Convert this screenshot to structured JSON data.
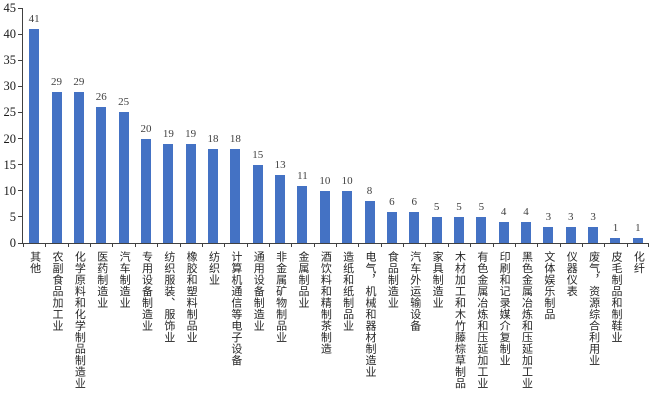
{
  "chart_data": {
    "type": "bar",
    "title": "",
    "xlabel": "",
    "ylabel": "",
    "categories": [
      "其他",
      "农副食品加工业",
      "化学原料和化学制品制造业",
      "医药制造业",
      "汽车制造业",
      "专用设备制造业",
      "纺织服装、服饰业",
      "橡胶和塑料制品业",
      "纺织业",
      "计算机通信等电子设备",
      "通用设备制造业",
      "非金属矿物制品业",
      "金属制品业",
      "酒饮料和精制茶制造",
      "造纸和纸制品业",
      "电气，机械和器材制造业",
      "食品制造业",
      "汽车外运输设备",
      "家具制造业",
      "木材加工和木竹藤棕草制品",
      "有色金属冶炼和压延加工业",
      "印刷和记录媒介复制业",
      "黑色金属冶炼和压延加工业",
      "文体娱乐制品",
      "仪器仪表",
      "废气，资源综合利用业",
      "皮毛制品和制鞋业",
      "化纤"
    ],
    "values": [
      41,
      29,
      29,
      26,
      25,
      20,
      19,
      19,
      18,
      18,
      15,
      13,
      11,
      10,
      10,
      8,
      6,
      6,
      5,
      5,
      5,
      4,
      4,
      3,
      3,
      3,
      1,
      1
    ],
    "value_labels_shown": true,
    "ylim": [
      0,
      45
    ],
    "yticks": [
      0,
      5,
      10,
      15,
      20,
      25,
      30,
      35,
      40,
      45
    ],
    "grid": false,
    "legend": false,
    "bar_color": "#4472C4",
    "axis_color": "#404040",
    "value_label_color": "#404040",
    "category_label_color": "#262626",
    "ytick_label_color": "#1a1a1a",
    "background_color": "#ffffff"
  }
}
